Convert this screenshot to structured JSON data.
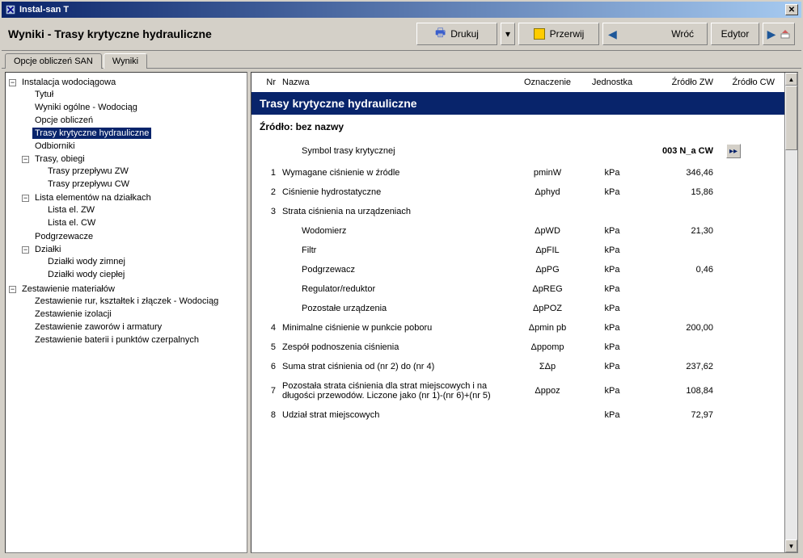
{
  "window": {
    "title": "Instal-san T"
  },
  "toolbar": {
    "title": "Wyniki - Trasy krytyczne hydrauliczne",
    "print": "Drukuj",
    "abort": "Przerwij",
    "back": "Wróć",
    "editor": "Edytor"
  },
  "tabs": {
    "opcje": "Opcje obliczeń SAN",
    "wyniki": "Wyniki"
  },
  "tree": {
    "n0": "Instalacja wodociągowa",
    "n0_0": "Tytuł",
    "n0_1": "Wyniki ogólne - Wodociąg",
    "n0_2": "Opcje obliczeń",
    "n0_3": "Trasy krytyczne hydrauliczne",
    "n0_4": "Odbiorniki",
    "n0_5": "Trasy, obiegi",
    "n0_5_0": "Trasy przepływu ZW",
    "n0_5_1": "Trasy przepływu CW",
    "n0_6": "Lista elementów na działkach",
    "n0_6_0": "Lista el. ZW",
    "n0_6_1": "Lista el. CW",
    "n0_7": "Podgrzewacze",
    "n0_8": "Działki",
    "n0_8_0": "Działki wody zimnej",
    "n0_8_1": "Działki wody ciepłej",
    "n1": "Zestawienie materiałów",
    "n1_0": "Zestawienie rur, kształtek i złączek - Wodociąg",
    "n1_1": "Zestawienie izolacji",
    "n1_2": "Zestawienie zaworów i armatury",
    "n1_3": "Zestawienie baterii i punktów czerpalnych"
  },
  "results": {
    "columns": {
      "nr": "Nr",
      "name": "Nazwa",
      "ozn": "Oznaczenie",
      "jed": "Jednostka",
      "zw": "Źródło ZW",
      "cw": "Źródło CW"
    },
    "section_title": "Trasy krytyczne hydrauliczne",
    "source_label": "Źródło:",
    "source_value": "bez nazwy",
    "symbol_label": "Symbol trasy krytycznej",
    "symbol_value": "003 N_a CW",
    "rows": [
      {
        "nr": "1",
        "name": "Wymagane ciśnienie w źródle",
        "ozn": "pminW",
        "jed": "kPa",
        "zw": "346,46",
        "indent": false
      },
      {
        "nr": "2",
        "name": "Ciśnienie hydrostatyczne",
        "ozn": "Δphyd",
        "jed": "kPa",
        "zw": "15,86",
        "indent": false
      },
      {
        "nr": "3",
        "name": "Strata ciśnienia na urządzeniach",
        "ozn": "",
        "jed": "",
        "zw": "",
        "indent": false
      },
      {
        "nr": "",
        "name": "Wodomierz",
        "ozn": "ΔpWD",
        "jed": "kPa",
        "zw": "21,30",
        "indent": true
      },
      {
        "nr": "",
        "name": "Filtr",
        "ozn": "ΔpFIL",
        "jed": "kPa",
        "zw": "",
        "indent": true
      },
      {
        "nr": "",
        "name": "Podgrzewacz",
        "ozn": "ΔpPG",
        "jed": "kPa",
        "zw": "0,46",
        "indent": true
      },
      {
        "nr": "",
        "name": "Regulator/reduktor",
        "ozn": "ΔpREG",
        "jed": "kPa",
        "zw": "",
        "indent": true
      },
      {
        "nr": "",
        "name": "Pozostałe urządzenia",
        "ozn": "ΔpPOZ",
        "jed": "kPa",
        "zw": "",
        "indent": true
      },
      {
        "nr": "4",
        "name": "Minimalne ciśnienie w punkcie poboru",
        "ozn": "Δpmin pb",
        "jed": "kPa",
        "zw": "200,00",
        "indent": false
      },
      {
        "nr": "5",
        "name": "Zespół podnoszenia ciśnienia",
        "ozn": "Δppomp",
        "jed": "kPa",
        "zw": "",
        "indent": false
      },
      {
        "nr": "6",
        "name": "Suma strat ciśnienia od (nr 2) do (nr 4)",
        "ozn": "ΣΔp",
        "jed": "kPa",
        "zw": "237,62",
        "indent": false
      },
      {
        "nr": "7",
        "name": "Pozostała strata ciśnienia dla strat miejscowych i na długości przewodów. Liczone jako (nr 1)-(nr 6)+(nr 5)",
        "ozn": "Δppoz",
        "jed": "kPa",
        "zw": "108,84",
        "indent": false
      },
      {
        "nr": "8",
        "name": "Udział strat miejscowych",
        "ozn": "",
        "jed": "kPa",
        "zw": "72,97",
        "indent": false
      }
    ]
  }
}
